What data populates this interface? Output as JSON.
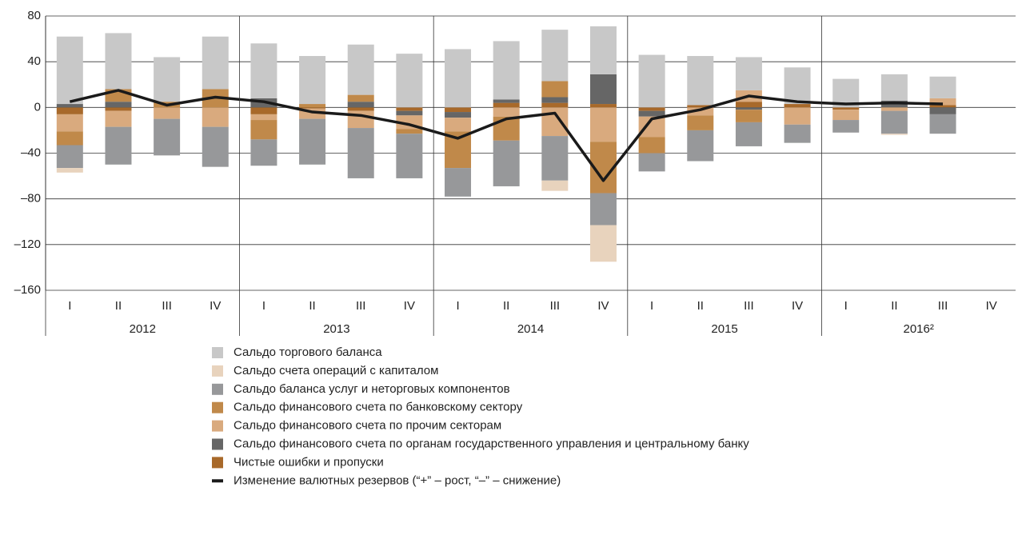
{
  "chart_data": {
    "type": "bar",
    "categories": [
      "I",
      "II",
      "III",
      "IV",
      "I",
      "II",
      "III",
      "IV",
      "I",
      "II",
      "III",
      "IV",
      "I",
      "II",
      "III",
      "IV",
      "I",
      "II",
      "III",
      "IV"
    ],
    "years": [
      "2012",
      "2013",
      "2014",
      "2015",
      "2016²"
    ],
    "ylim": [
      -160,
      80
    ],
    "yticks": [
      80,
      40,
      0,
      {
        "value": -40,
        "label": "–40"
      },
      {
        "value": -80,
        "label": "–80"
      },
      {
        "value": -120,
        "label": "–120"
      },
      {
        "value": -160,
        "label": "–160"
      }
    ],
    "grid": true,
    "series": [
      {
        "name": "Сальдо торгового баланса",
        "color": "#c8c8c8",
        "values": [
          59,
          49,
          39,
          46,
          48,
          42,
          44,
          47,
          51,
          51,
          45,
          42,
          46,
          43,
          29,
          32,
          25,
          23,
          19,
          null
        ]
      },
      {
        "name": "Сальдо счета операций с капиталом",
        "color": "#e8d3bd",
        "values": [
          -4,
          0,
          0,
          0,
          0,
          0,
          0,
          0,
          0,
          0,
          -9,
          -32,
          0,
          0,
          0,
          0,
          0,
          -1,
          0,
          null
        ]
      },
      {
        "name": "Сальдо баланса услуг и неторговых компонентов",
        "color": "#97989a",
        "values": [
          -20,
          -33,
          -32,
          -35,
          -23,
          -40,
          -44,
          -39,
          -25,
          -40,
          -39,
          -28,
          -16,
          -27,
          -21,
          -16,
          -11,
          -20,
          -17,
          null
        ]
      },
      {
        "name": "Сальдо финансового счета по банковскому сектору",
        "color": "#c0894a",
        "values": [
          -12,
          11,
          5,
          16,
          -17,
          3,
          6,
          -4,
          -32,
          -21,
          14,
          -45,
          -14,
          -13,
          -11,
          0,
          0,
          0,
          0,
          null
        ]
      },
      {
        "name": "Сальдо финансового счета по прочим секторам",
        "color": "#d9aa7e",
        "values": [
          -15,
          -14,
          -10,
          -17,
          -5,
          -9,
          -15,
          -12,
          -12,
          -8,
          -25,
          -30,
          -18,
          -7,
          10,
          -15,
          -9,
          -3,
          6,
          null
        ]
      },
      {
        "name": "Сальдо финансового счета по органам государственного управления и центральному банку",
        "color": "#666666",
        "values": [
          3,
          5,
          0,
          0,
          8,
          0,
          5,
          -4,
          -5,
          3,
          5,
          26,
          -5,
          0,
          -2,
          0,
          0,
          6,
          -6,
          null
        ]
      },
      {
        "name": "Чистые ошибки и пропуски",
        "color": "#a8692a",
        "values": [
          -6,
          -3,
          0,
          0,
          -6,
          -1,
          -3,
          -3,
          -4,
          4,
          4,
          3,
          -3,
          2,
          5,
          3,
          -2,
          0,
          2,
          null
        ]
      },
      {
        "name": "Изменение валютных резервов (“+” – рост, “–” – снижение)",
        "color": "#1a1a1a",
        "kind": "line",
        "values": [
          5,
          15,
          2,
          9,
          5,
          -4,
          -7,
          -15,
          -27,
          -10,
          -5,
          -64,
          -10,
          -2,
          10,
          5,
          3,
          4,
          3,
          null
        ]
      }
    ]
  }
}
